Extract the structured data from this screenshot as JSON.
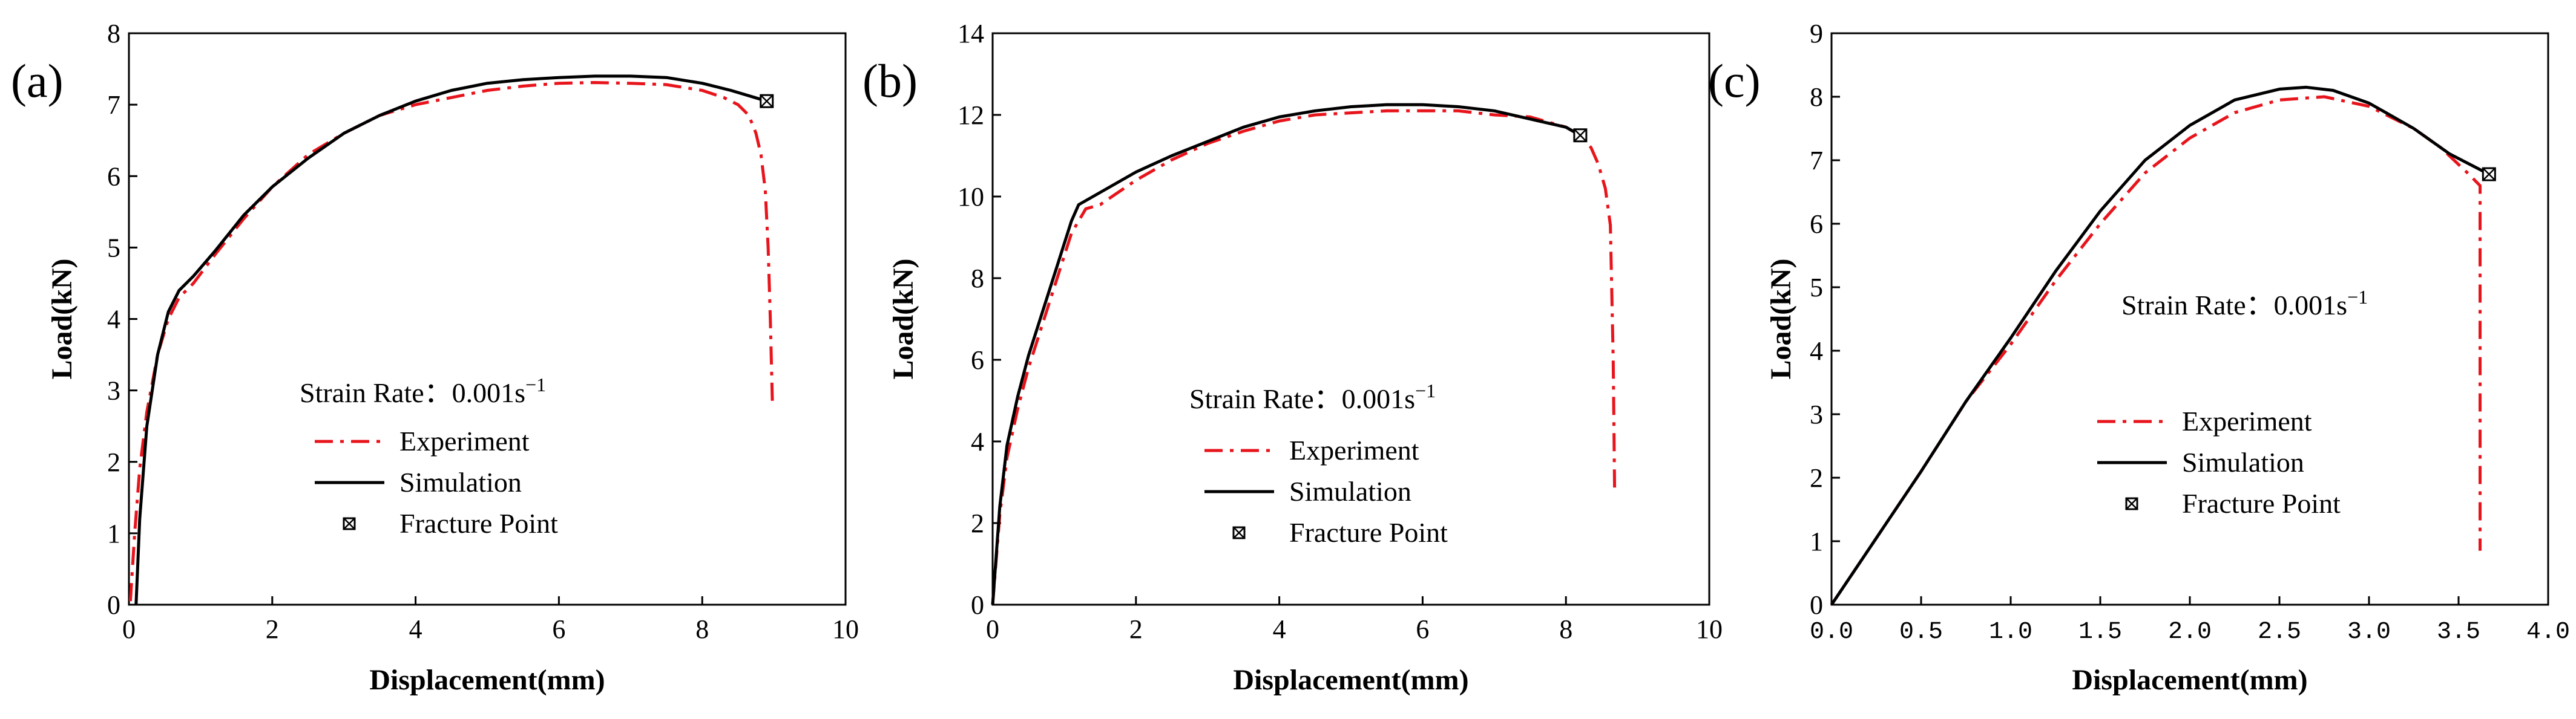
{
  "chart_data": [
    {
      "type": "line",
      "panel_label": "(a)",
      "xlabel": "Displacement(mm)",
      "ylabel": "Load(kN)",
      "xlim": [
        0,
        10
      ],
      "ylim": [
        0,
        8
      ],
      "xticks": [
        "0",
        "2",
        "4",
        "6",
        "8",
        "10"
      ],
      "yticks": [
        "0",
        "1",
        "2",
        "3",
        "4",
        "5",
        "6",
        "7",
        "8"
      ],
      "annotation": "Strain Rate：0.001s",
      "annotation_sup": "−1",
      "legend": [
        "Experiment",
        "Simulation",
        "Fracture Point"
      ],
      "series": [
        {
          "name": "Experiment",
          "color": "#e8141c",
          "style": "dash-dot",
          "x": [
            0.02,
            0.08,
            0.15,
            0.25,
            0.4,
            0.55,
            0.7,
            0.9,
            1.2,
            1.6,
            2,
            2.5,
            3,
            3.5,
            4,
            4.5,
            5,
            5.5,
            6,
            6.5,
            7,
            7.5,
            8,
            8.3,
            8.5,
            8.65,
            8.75,
            8.82,
            8.88,
            8.92,
            8.95,
            8.98
          ],
          "y": [
            0.05,
            1.0,
            1.9,
            2.7,
            3.5,
            4.0,
            4.3,
            4.5,
            4.9,
            5.4,
            5.85,
            6.3,
            6.6,
            6.85,
            7.0,
            7.1,
            7.2,
            7.26,
            7.3,
            7.31,
            7.3,
            7.28,
            7.2,
            7.1,
            7.0,
            6.85,
            6.6,
            6.3,
            5.8,
            5.0,
            4.0,
            2.8
          ]
        },
        {
          "name": "Simulation",
          "color": "#000000",
          "style": "solid",
          "x": [
            0.1,
            0.15,
            0.25,
            0.4,
            0.55,
            0.7,
            0.9,
            1.2,
            1.6,
            2,
            2.5,
            3,
            3.5,
            4,
            4.5,
            5,
            5.5,
            6,
            6.5,
            7,
            7.5,
            8,
            8.4,
            8.9
          ],
          "y": [
            0.0,
            1.2,
            2.5,
            3.5,
            4.1,
            4.4,
            4.6,
            4.95,
            5.45,
            5.85,
            6.25,
            6.6,
            6.85,
            7.05,
            7.2,
            7.3,
            7.35,
            7.38,
            7.4,
            7.4,
            7.38,
            7.3,
            7.2,
            7.05
          ]
        }
      ],
      "fracture_point": [
        8.9,
        7.05
      ]
    },
    {
      "type": "line",
      "panel_label": "(b)",
      "xlabel": "Displacement(mm)",
      "ylabel": "Load(kN)",
      "xlim": [
        0,
        10
      ],
      "ylim": [
        0,
        14
      ],
      "xticks": [
        "0",
        "2",
        "4",
        "6",
        "8",
        "10"
      ],
      "yticks": [
        "0",
        "2",
        "4",
        "6",
        "8",
        "10",
        "12",
        "14"
      ],
      "annotation": "Strain Rate：0.001s",
      "annotation_sup": "−1",
      "legend": [
        "Experiment",
        "Simulation",
        "Fracture Point"
      ],
      "series": [
        {
          "name": "Experiment",
          "color": "#e8141c",
          "style": "dash-dot",
          "x": [
            0.0,
            0.1,
            0.2,
            0.35,
            0.5,
            0.7,
            0.9,
            1.1,
            1.3,
            1.5,
            2,
            2.5,
            3,
            3.5,
            4,
            4.5,
            5,
            5.5,
            6,
            6.5,
            7,
            7.5,
            8,
            8.2,
            8.35,
            8.45,
            8.55,
            8.62,
            8.66,
            8.68
          ],
          "y": [
            0.0,
            2.2,
            3.6,
            4.8,
            5.8,
            6.9,
            8.0,
            9.1,
            9.7,
            9.8,
            10.4,
            10.9,
            11.3,
            11.6,
            11.85,
            12.0,
            12.05,
            12.1,
            12.1,
            12.1,
            12.0,
            11.95,
            11.7,
            11.5,
            11.2,
            10.8,
            10.2,
            9.3,
            6.0,
            2.7
          ]
        },
        {
          "name": "Simulation",
          "color": "#000000",
          "style": "solid",
          "x": [
            0.0,
            0.1,
            0.2,
            0.35,
            0.5,
            0.7,
            0.9,
            1.1,
            1.2,
            1.4,
            2,
            2.5,
            3,
            3.5,
            4,
            4.5,
            5,
            5.5,
            6,
            6.5,
            7,
            7.5,
            8,
            8.2
          ],
          "y": [
            0.0,
            2.4,
            3.9,
            5.1,
            6.1,
            7.2,
            8.3,
            9.4,
            9.8,
            10.0,
            10.6,
            11.0,
            11.35,
            11.7,
            11.95,
            12.1,
            12.2,
            12.25,
            12.25,
            12.2,
            12.1,
            11.9,
            11.7,
            11.5
          ]
        }
      ],
      "fracture_point": [
        8.2,
        11.5
      ]
    },
    {
      "type": "line",
      "panel_label": "(c)",
      "xlabel": "Displacement(mm)",
      "ylabel": "Load(kN)",
      "xlim": [
        0,
        4
      ],
      "ylim": [
        0,
        9
      ],
      "xticks": [
        "0.0",
        "0.5",
        "1.0",
        "1.5",
        "2.0",
        "2.5",
        "3.0",
        "3.5",
        "4.0"
      ],
      "yticks": [
        "0",
        "1",
        "2",
        "3",
        "4",
        "5",
        "6",
        "7",
        "8",
        "9"
      ],
      "annotation": "Strain Rate：0.001s",
      "annotation_sup": "−1",
      "legend": [
        "Experiment",
        "Simulation",
        "Fracture Point"
      ],
      "series": [
        {
          "name": "Experiment",
          "color": "#e8141c",
          "style": "dash-dot",
          "x": [
            0.0,
            0.25,
            0.5,
            0.75,
            1.0,
            1.25,
            1.5,
            1.75,
            2.0,
            2.25,
            2.5,
            2.75,
            3.0,
            3.25,
            3.4,
            3.55,
            3.62,
            3.62,
            3.62
          ],
          "y": [
            0.0,
            1.05,
            2.1,
            3.2,
            4.1,
            5.1,
            6.0,
            6.8,
            7.35,
            7.75,
            7.95,
            8.0,
            7.85,
            7.5,
            7.2,
            6.8,
            6.6,
            3.5,
            0.85
          ]
        },
        {
          "name": "Simulation",
          "color": "#000000",
          "style": "solid",
          "x": [
            0.0,
            0.25,
            0.5,
            0.75,
            1.0,
            1.25,
            1.5,
            1.75,
            2.0,
            2.25,
            2.5,
            2.65,
            2.8,
            3.0,
            3.25,
            3.45,
            3.67
          ],
          "y": [
            0.0,
            1.05,
            2.1,
            3.2,
            4.2,
            5.25,
            6.2,
            7.0,
            7.55,
            7.95,
            8.12,
            8.15,
            8.1,
            7.9,
            7.5,
            7.1,
            6.78
          ]
        }
      ],
      "fracture_point": [
        3.67,
        6.78
      ]
    }
  ]
}
